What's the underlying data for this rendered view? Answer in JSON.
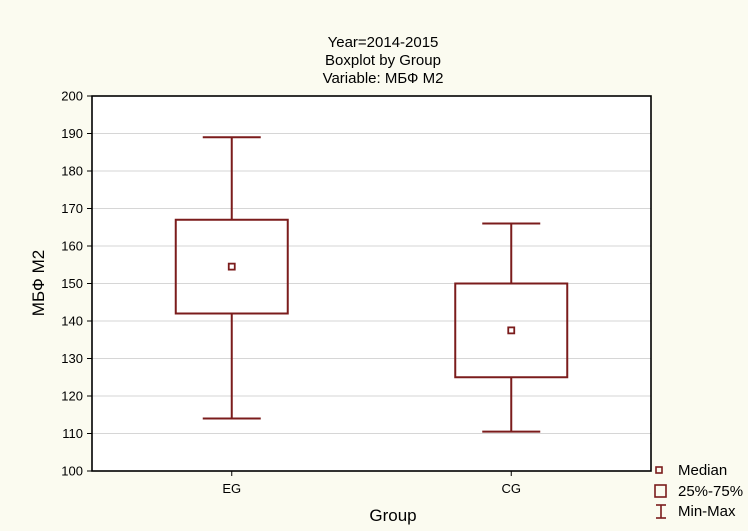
{
  "chart_data": {
    "type": "box",
    "title_lines": [
      "Year=2014-2015",
      "Boxplot by Group",
      "Variable: МБФ М2"
    ],
    "xlabel": "Group",
    "ylabel": "МБФ М2",
    "ylim": [
      100,
      200
    ],
    "yticks": [
      100,
      110,
      120,
      130,
      140,
      150,
      160,
      170,
      180,
      190,
      200
    ],
    "grid": true,
    "categories": [
      "EG",
      "CG"
    ],
    "boxes": [
      {
        "category": "EG",
        "min": 114,
        "q1": 142,
        "median": 154.5,
        "q3": 167,
        "max": 189
      },
      {
        "category": "CG",
        "min": 110.5,
        "q1": 125,
        "median": 137.5,
        "q3": 150,
        "max": 166
      }
    ],
    "legend": {
      "position": "bottom-right",
      "entries": [
        "Median",
        "25%-75%",
        "Min-Max"
      ]
    },
    "colors": {
      "box": "#7b1c1c",
      "grid": "#d6d6d6",
      "frame": "#000000"
    }
  }
}
